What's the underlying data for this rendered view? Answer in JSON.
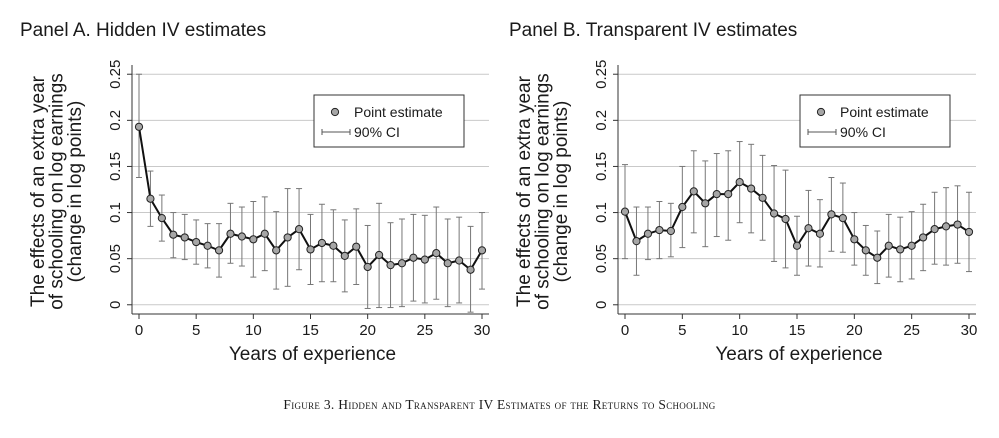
{
  "caption": "Figure 3. Hidden and Transparent IV Estimates of the Returns to Schooling",
  "chart_data": [
    {
      "type": "scatter",
      "title": "Panel A. Hidden IV estimates",
      "xlabel": "Years of experience",
      "ylabel": [
        "The effects of an extra year",
        "of schooling on log earnings",
        "(change in log points)"
      ],
      "xlim": [
        0,
        30
      ],
      "ylim": [
        -0.01,
        0.26
      ],
      "xticks": [
        0,
        5,
        10,
        15,
        20,
        25,
        30
      ],
      "yticks": [
        0,
        0.05,
        0.1,
        0.15,
        0.2,
        0.25
      ],
      "ytick_labels": [
        "0",
        "0.05",
        "0.1",
        "0.15",
        "0.2",
        "0.25"
      ],
      "grid": true,
      "legend": {
        "position": "top-right",
        "entries": [
          "Point estimate",
          "90% CI"
        ]
      },
      "series": [
        {
          "name": "Point estimate",
          "x": [
            0,
            1,
            2,
            3,
            4,
            5,
            6,
            7,
            8,
            9,
            10,
            11,
            12,
            13,
            14,
            15,
            16,
            17,
            18,
            19,
            20,
            21,
            22,
            23,
            24,
            25,
            26,
            27,
            28,
            29,
            30
          ],
          "y": [
            0.193,
            0.115,
            0.094,
            0.076,
            0.073,
            0.068,
            0.064,
            0.059,
            0.077,
            0.074,
            0.071,
            0.077,
            0.059,
            0.073,
            0.082,
            0.06,
            0.067,
            0.064,
            0.053,
            0.063,
            0.041,
            0.054,
            0.043,
            0.045,
            0.051,
            0.049,
            0.056,
            0.045,
            0.048,
            0.038,
            0.059
          ],
          "ci_low": [
            0.138,
            0.085,
            0.069,
            0.051,
            0.049,
            0.044,
            0.04,
            0.03,
            0.045,
            0.042,
            0.03,
            0.037,
            0.017,
            0.02,
            0.038,
            0.022,
            0.025,
            0.025,
            0.014,
            0.022,
            -0.004,
            -0.003,
            -0.003,
            -0.002,
            0.004,
            0.002,
            0.006,
            -0.002,
            0.002,
            -0.008,
            0.017
          ],
          "ci_high": [
            0.25,
            0.145,
            0.119,
            0.1,
            0.098,
            0.092,
            0.088,
            0.088,
            0.11,
            0.106,
            0.112,
            0.117,
            0.101,
            0.126,
            0.126,
            0.098,
            0.109,
            0.103,
            0.092,
            0.104,
            0.086,
            0.11,
            0.089,
            0.093,
            0.098,
            0.097,
            0.106,
            0.093,
            0.095,
            0.085,
            0.1
          ]
        }
      ]
    },
    {
      "type": "scatter",
      "title": "Panel B. Transparent IV estimates",
      "xlabel": "Years of experience",
      "ylabel": [
        "The effects of an extra year",
        "of schooling on log earnings",
        "(change in log points)"
      ],
      "xlim": [
        0,
        30
      ],
      "ylim": [
        -0.01,
        0.26
      ],
      "xticks": [
        0,
        5,
        10,
        15,
        20,
        25,
        30
      ],
      "yticks": [
        0,
        0.05,
        0.1,
        0.15,
        0.2,
        0.25
      ],
      "ytick_labels": [
        "0",
        "0.05",
        "0.1",
        "0.15",
        "0.2",
        "0.25"
      ],
      "grid": true,
      "legend": {
        "position": "top-right",
        "entries": [
          "Point estimate",
          "90% CI"
        ]
      },
      "series": [
        {
          "name": "Point estimate",
          "x": [
            0,
            1,
            2,
            3,
            4,
            5,
            6,
            7,
            8,
            9,
            10,
            11,
            12,
            13,
            14,
            15,
            16,
            17,
            18,
            19,
            20,
            21,
            22,
            23,
            24,
            25,
            26,
            27,
            28,
            29,
            30
          ],
          "y": [
            0.101,
            0.069,
            0.077,
            0.081,
            0.08,
            0.106,
            0.123,
            0.11,
            0.12,
            0.12,
            0.133,
            0.126,
            0.116,
            0.099,
            0.093,
            0.064,
            0.083,
            0.077,
            0.098,
            0.094,
            0.071,
            0.059,
            0.051,
            0.064,
            0.06,
            0.064,
            0.073,
            0.082,
            0.085,
            0.087,
            0.079
          ],
          "ci_low": [
            0.05,
            0.032,
            0.049,
            0.05,
            0.052,
            0.062,
            0.078,
            0.063,
            0.074,
            0.07,
            0.089,
            0.078,
            0.07,
            0.047,
            0.04,
            0.032,
            0.042,
            0.041,
            0.058,
            0.057,
            0.043,
            0.032,
            0.023,
            0.03,
            0.025,
            0.028,
            0.037,
            0.044,
            0.043,
            0.045,
            0.036
          ],
          "ci_high": [
            0.152,
            0.106,
            0.106,
            0.112,
            0.11,
            0.15,
            0.167,
            0.156,
            0.164,
            0.167,
            0.177,
            0.174,
            0.162,
            0.151,
            0.146,
            0.096,
            0.124,
            0.114,
            0.138,
            0.132,
            0.1,
            0.086,
            0.08,
            0.098,
            0.095,
            0.101,
            0.109,
            0.122,
            0.127,
            0.129,
            0.122
          ]
        }
      ]
    }
  ]
}
